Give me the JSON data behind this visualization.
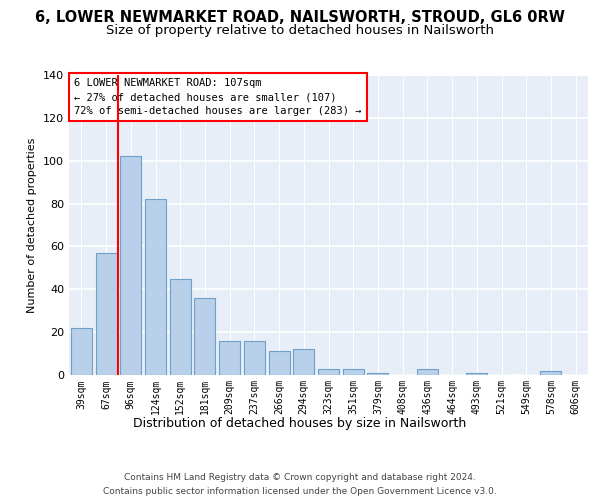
{
  "title1": "6, LOWER NEWMARKET ROAD, NAILSWORTH, STROUD, GL6 0RW",
  "title2": "Size of property relative to detached houses in Nailsworth",
  "xlabel": "Distribution of detached houses by size in Nailsworth",
  "ylabel": "Number of detached properties",
  "categories": [
    "39sqm",
    "67sqm",
    "96sqm",
    "124sqm",
    "152sqm",
    "181sqm",
    "209sqm",
    "237sqm",
    "266sqm",
    "294sqm",
    "323sqm",
    "351sqm",
    "379sqm",
    "408sqm",
    "436sqm",
    "464sqm",
    "493sqm",
    "521sqm",
    "549sqm",
    "578sqm",
    "606sqm"
  ],
  "values": [
    22,
    57,
    102,
    82,
    45,
    36,
    16,
    16,
    11,
    12,
    3,
    3,
    1,
    0,
    3,
    0,
    1,
    0,
    0,
    2,
    0
  ],
  "bar_color": "#b8d0ea",
  "bar_edge_color": "#6fa0c8",
  "vline_color": "red",
  "vline_position": 1.5,
  "ylim": [
    0,
    140
  ],
  "yticks": [
    0,
    20,
    40,
    60,
    80,
    100,
    120,
    140
  ],
  "annotation_line1": "6 LOWER NEWMARKET ROAD: 107sqm",
  "annotation_line2": "← 27% of detached houses are smaller (107)",
  "annotation_line3": "72% of semi-detached houses are larger (283) →",
  "footer1": "Contains HM Land Registry data © Crown copyright and database right 2024.",
  "footer2": "Contains public sector information licensed under the Open Government Licence v3.0.",
  "bg_color": "#e8eef8",
  "grid_color": "white",
  "title_fontsize": 10.5,
  "subtitle_fontsize": 9.5,
  "tick_fontsize": 7,
  "ylabel_fontsize": 8,
  "xlabel_fontsize": 9
}
